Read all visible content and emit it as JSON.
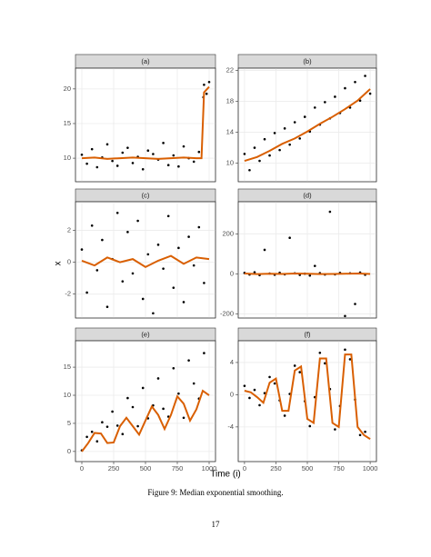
{
  "x_label": "Time (i)",
  "y_label": "x",
  "caption": "Figure 9: Median exponential smoothing.",
  "page_number": "17",
  "chart_data": [
    {
      "type": "scatter",
      "title": "(a)",
      "color": "#000000",
      "smooth_color": "#d95f02",
      "grid": true,
      "x_tick_labels": false,
      "xlim": [
        -50,
        1050
      ],
      "ylim": [
        6.6,
        23
      ],
      "xticks": [
        0,
        250,
        500,
        750,
        1000
      ],
      "yticks": [
        10,
        15,
        20
      ],
      "x": [
        0,
        40,
        80,
        120,
        160,
        200,
        240,
        280,
        320,
        360,
        400,
        440,
        480,
        520,
        560,
        600,
        640,
        680,
        720,
        760,
        800,
        840,
        880,
        920,
        955,
        960,
        980,
        1000
      ],
      "values": [
        10.5,
        9.2,
        11.3,
        8.7,
        10.1,
        12.0,
        9.6,
        8.9,
        10.8,
        11.5,
        9.3,
        10.2,
        8.4,
        11.1,
        10.6,
        9.8,
        12.2,
        9.0,
        10.4,
        8.8,
        11.7,
        10.0,
        9.5,
        10.9,
        18.8,
        20.6,
        19.3,
        21.0
      ],
      "smooth_x": [
        0,
        100,
        200,
        300,
        400,
        500,
        600,
        700,
        800,
        900,
        940,
        960,
        1000
      ],
      "smooth_values": [
        10,
        10.1,
        9.9,
        10,
        10.1,
        10,
        9.9,
        10,
        10.1,
        10,
        10,
        19.5,
        20.3
      ]
    },
    {
      "type": "scatter",
      "title": "(b)",
      "color": "#000000",
      "smooth_color": "#d95f02",
      "grid": true,
      "x_tick_labels": false,
      "xlim": [
        -50,
        1050
      ],
      "ylim": [
        7.6,
        22.3
      ],
      "xticks": [
        0,
        250,
        500,
        750,
        1000
      ],
      "yticks": [
        10,
        14,
        18,
        22
      ],
      "x": [
        0,
        40,
        80,
        120,
        160,
        200,
        240,
        280,
        320,
        360,
        400,
        440,
        480,
        520,
        560,
        600,
        640,
        680,
        720,
        760,
        800,
        840,
        880,
        920,
        960,
        1000
      ],
      "values": [
        11.2,
        9.1,
        12.0,
        10.3,
        13.1,
        11.0,
        13.9,
        11.7,
        14.5,
        12.4,
        15.3,
        13.2,
        16.0,
        14.1,
        17.2,
        15.0,
        17.9,
        15.8,
        18.6,
        16.5,
        19.7,
        17.2,
        20.5,
        18.1,
        21.3,
        19.0
      ],
      "smooth_x": [
        0,
        100,
        200,
        300,
        400,
        500,
        600,
        700,
        800,
        900,
        1000
      ],
      "smooth_values": [
        10.3,
        10.8,
        11.6,
        12.5,
        13.2,
        14.1,
        15.1,
        16.0,
        17.0,
        18.1,
        19.6
      ]
    },
    {
      "type": "scatter",
      "title": "(c)",
      "color": "#000000",
      "smooth_color": "#d95f02",
      "grid": true,
      "x_tick_labels": false,
      "xlim": [
        -50,
        1050
      ],
      "ylim": [
        -3.5,
        3.8
      ],
      "xticks": [
        0,
        250,
        500,
        750,
        1000
      ],
      "yticks": [
        -2,
        0,
        2
      ],
      "x": [
        0,
        40,
        80,
        120,
        160,
        200,
        240,
        280,
        320,
        360,
        400,
        440,
        480,
        520,
        560,
        600,
        640,
        680,
        720,
        760,
        800,
        840,
        880,
        920,
        960
      ],
      "values": [
        0.8,
        -1.9,
        2.3,
        -0.5,
        1.4,
        -2.8,
        0.2,
        3.1,
        -1.2,
        1.9,
        -0.7,
        2.6,
        -2.3,
        0.5,
        -3.2,
        1.1,
        -0.4,
        2.9,
        -1.6,
        0.9,
        -2.5,
        1.6,
        -0.2,
        2.2,
        -1.3
      ],
      "smooth_x": [
        0,
        100,
        200,
        300,
        400,
        500,
        600,
        700,
        800,
        900,
        1000
      ],
      "smooth_values": [
        0.1,
        -0.2,
        0.3,
        0,
        0.2,
        -0.3,
        0.1,
        0.4,
        -0.1,
        0.3,
        0.2
      ]
    },
    {
      "type": "scatter",
      "title": "(d)",
      "color": "#000000",
      "smooth_color": "#d95f02",
      "grid": true,
      "x_tick_labels": false,
      "xlim": [
        -50,
        1050
      ],
      "ylim": [
        -220,
        360
      ],
      "xticks": [
        0,
        250,
        500,
        750,
        1000
      ],
      "yticks": [
        -200,
        0,
        200
      ],
      "x": [
        0,
        40,
        80,
        120,
        160,
        200,
        240,
        280,
        320,
        360,
        400,
        440,
        480,
        520,
        560,
        600,
        640,
        680,
        720,
        760,
        800,
        840,
        880,
        920,
        960
      ],
      "values": [
        5,
        -3,
        8,
        -6,
        120,
        2,
        -4,
        6,
        -2,
        180,
        3,
        -5,
        1,
        -8,
        40,
        4,
        -3,
        310,
        -2,
        5,
        -210,
        3,
        -150,
        7,
        -4
      ],
      "smooth_x": [
        0,
        100,
        200,
        300,
        400,
        500,
        600,
        700,
        800,
        900,
        1000
      ],
      "smooth_values": [
        2,
        -1,
        1,
        0,
        2,
        1,
        -1,
        0,
        1,
        2,
        0
      ]
    },
    {
      "type": "scatter",
      "title": "(e)",
      "color": "#000000",
      "smooth_color": "#d95f02",
      "grid": true,
      "x_tick_labels": true,
      "xlim": [
        -50,
        1050
      ],
      "ylim": [
        -1.8,
        19.7
      ],
      "xticks": [
        0,
        250,
        500,
        750,
        1000
      ],
      "yticks": [
        0,
        5,
        10,
        15
      ],
      "x": [
        0,
        40,
        80,
        120,
        160,
        200,
        240,
        280,
        320,
        360,
        400,
        440,
        480,
        520,
        560,
        600,
        640,
        680,
        720,
        760,
        800,
        840,
        880,
        920,
        960
      ],
      "values": [
        0.2,
        2.6,
        3.5,
        1.8,
        5.2,
        4.4,
        7.1,
        4.6,
        3.1,
        9.5,
        7.9,
        4.5,
        11.3,
        5.9,
        8.2,
        13.0,
        7.6,
        6.2,
        14.8,
        10.3,
        6.0,
        16.2,
        12.1,
        9.4,
        17.5
      ],
      "smooth_x": [
        0,
        50,
        100,
        150,
        200,
        250,
        300,
        350,
        400,
        450,
        500,
        550,
        600,
        650,
        700,
        750,
        800,
        850,
        900,
        950,
        1000
      ],
      "smooth_values": [
        0,
        1.5,
        3.3,
        3.2,
        1.5,
        1.6,
        4.5,
        6.0,
        4.5,
        3.0,
        5.5,
        8.0,
        6.5,
        4.0,
        6.5,
        9.8,
        8.5,
        5.5,
        7.5,
        10.8,
        10.0
      ]
    },
    {
      "type": "scatter",
      "title": "(f)",
      "color": "#000000",
      "smooth_color": "#d95f02",
      "grid": true,
      "x_tick_labels": true,
      "xlim": [
        -50,
        1050
      ],
      "ylim": [
        -8.3,
        6.7
      ],
      "xticks": [
        0,
        250,
        500,
        750,
        1000
      ],
      "yticks": [
        -4,
        0,
        4
      ],
      "x": [
        0,
        40,
        80,
        120,
        160,
        200,
        240,
        280,
        320,
        360,
        400,
        440,
        480,
        520,
        560,
        600,
        640,
        680,
        720,
        760,
        800,
        840,
        880,
        920,
        960
      ],
      "values": [
        1.1,
        -0.4,
        0.6,
        -1.3,
        0.2,
        2.2,
        1.4,
        -0.7,
        -2.6,
        0.1,
        3.6,
        2.8,
        -0.8,
        -3.9,
        -0.3,
        5.2,
        3.9,
        0.7,
        -4.3,
        -1.4,
        5.6,
        4.4,
        -0.6,
        -5.0,
        -4.6
      ],
      "smooth_x": [
        0,
        50,
        100,
        150,
        200,
        250,
        300,
        350,
        400,
        450,
        500,
        550,
        600,
        650,
        700,
        750,
        800,
        850,
        900,
        950,
        1000
      ],
      "smooth_values": [
        0.5,
        0.3,
        -0.3,
        -1,
        1.5,
        2,
        -2,
        -2,
        3,
        3.5,
        -3,
        -3.5,
        4.5,
        4.5,
        -3.5,
        -4,
        5,
        5,
        -4,
        -5,
        -5.5
      ]
    }
  ]
}
